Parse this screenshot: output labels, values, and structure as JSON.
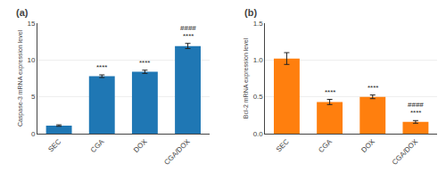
{
  "chart_data": [
    {
      "type": "bar",
      "title": "(a)",
      "categories": [
        "SEC",
        "CGA",
        "DOX",
        "CGA/DOX"
      ],
      "values": [
        1.1,
        7.8,
        8.4,
        11.9
      ],
      "errors": [
        0.1,
        0.18,
        0.22,
        0.35
      ],
      "ylabel": "Caspase-3 mRNA expression level",
      "ylim": [
        0,
        15
      ],
      "yticks": [
        0,
        5,
        10,
        15
      ],
      "grid": true,
      "annotations": [
        {
          "category": "CGA",
          "texts": [
            "****"
          ]
        },
        {
          "category": "DOX",
          "texts": [
            "****"
          ]
        },
        {
          "category": "CGA/DOX",
          "texts": [
            "****",
            "####"
          ]
        }
      ]
    },
    {
      "type": "bar",
      "title": "(b)",
      "categories": [
        "SEC",
        "CGA",
        "DOX",
        "CGA/DOX"
      ],
      "values": [
        1.02,
        0.43,
        0.5,
        0.16
      ],
      "errors": [
        0.08,
        0.035,
        0.025,
        0.018
      ],
      "ylabel": "Bcl-2 mRNA expression level",
      "ylim": [
        0,
        1.5
      ],
      "yticks": [
        {
          "value": 0,
          "label": "0.0"
        },
        0.5,
        {
          "value": 1,
          "label": "1.0"
        },
        1.5
      ],
      "grid": true,
      "annotations": [
        {
          "category": "CGA",
          "texts": [
            "****"
          ]
        },
        {
          "category": "DOX",
          "texts": [
            "****"
          ]
        },
        {
          "category": "CGA/DOX",
          "texts": [
            "****",
            "####"
          ]
        }
      ]
    }
  ]
}
